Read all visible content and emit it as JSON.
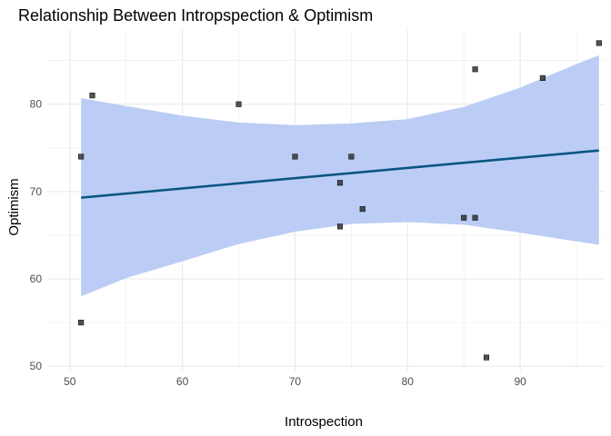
{
  "chart_data": {
    "type": "scatter",
    "title": "Relationship Between Intropspection & Optimism",
    "xlabel": "Introspection",
    "ylabel": "Optimism",
    "xlim": [
      48,
      97.5
    ],
    "ylim": [
      49.5,
      88.5
    ],
    "x_ticks": [
      50,
      60,
      70,
      80,
      90
    ],
    "y_ticks": [
      50,
      60,
      70,
      80
    ],
    "grid": true,
    "legend": "none",
    "points": [
      {
        "x": 51,
        "y": 74
      },
      {
        "x": 51,
        "y": 55
      },
      {
        "x": 52,
        "y": 81
      },
      {
        "x": 65,
        "y": 80
      },
      {
        "x": 70,
        "y": 74
      },
      {
        "x": 74,
        "y": 71
      },
      {
        "x": 74,
        "y": 66
      },
      {
        "x": 75,
        "y": 74
      },
      {
        "x": 76,
        "y": 68
      },
      {
        "x": 85,
        "y": 67
      },
      {
        "x": 86,
        "y": 84
      },
      {
        "x": 86,
        "y": 67
      },
      {
        "x": 87,
        "y": 51
      },
      {
        "x": 92,
        "y": 83
      },
      {
        "x": 97,
        "y": 87
      }
    ],
    "fit_line": {
      "x": [
        51,
        97
      ],
      "y": [
        69.3,
        74.7
      ],
      "color": "#0b5582"
    },
    "confidence_band": {
      "x": [
        51,
        55,
        60,
        65,
        70,
        75,
        80,
        85,
        90,
        95,
        97
      ],
      "upper": [
        80.7,
        79.8,
        78.7,
        77.9,
        77.6,
        77.8,
        78.3,
        79.7,
        81.9,
        84.6,
        85.6
      ],
      "lower": [
        58.0,
        60.1,
        62.0,
        64.0,
        65.4,
        66.3,
        66.5,
        66.2,
        65.3,
        64.3,
        63.9
      ],
      "color": "#b7caf4"
    },
    "point_color": "#333333",
    "grid_color": "#ebebeb"
  }
}
